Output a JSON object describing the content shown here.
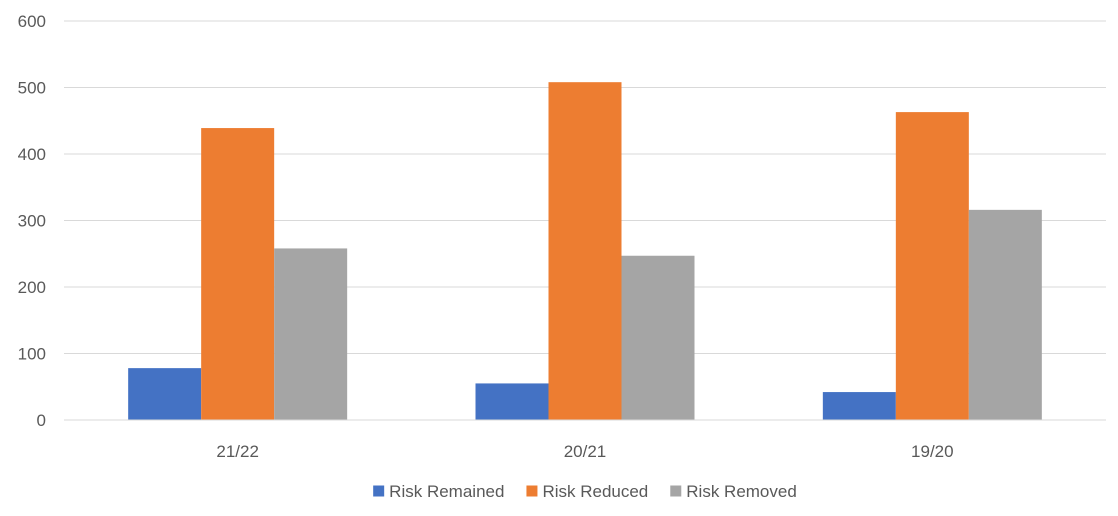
{
  "chart_data": {
    "type": "bar",
    "title": "",
    "xlabel": "",
    "ylabel": "",
    "categories": [
      "21/22",
      "20/21",
      "19/20"
    ],
    "ylim": [
      0,
      600
    ],
    "yticks": [
      0,
      100,
      200,
      300,
      400,
      500,
      600
    ],
    "grid": true,
    "legend_position": "bottom",
    "series": [
      {
        "name": "Risk Remained",
        "color": "#4472C4",
        "values": [
          78,
          55,
          42
        ]
      },
      {
        "name": "Risk Reduced",
        "color": "#ED7D31",
        "values": [
          439,
          508,
          463
        ]
      },
      {
        "name": "Risk Removed",
        "color": "#A5A5A5",
        "values": [
          258,
          247,
          316
        ]
      }
    ]
  }
}
